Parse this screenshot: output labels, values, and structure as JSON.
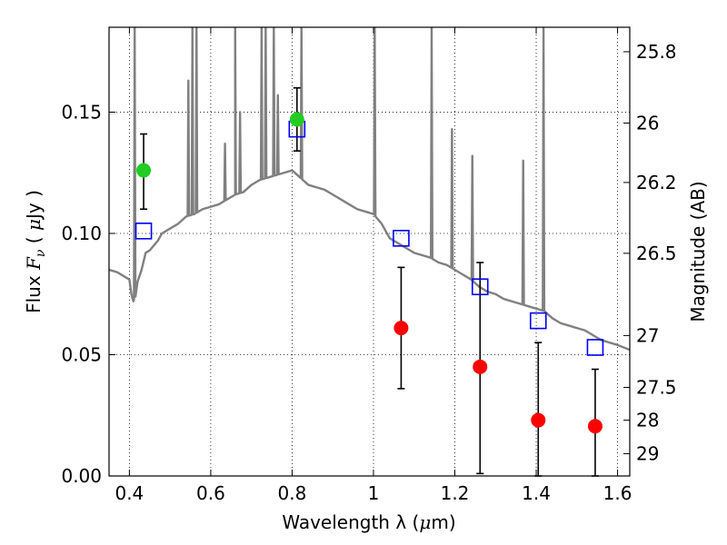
{
  "chart_data": {
    "type": "scatter",
    "xlabel": "Wavelength  λ (μm)",
    "ylabel": "Flux  Fν  ( μJy )",
    "ylabel_right": "Magnitude (AB)",
    "xlim": [
      0.35,
      1.63
    ],
    "ylim": [
      0.0,
      0.185
    ],
    "grid": true,
    "x_ticks": [
      0.4,
      0.6,
      0.8,
      1.0,
      1.2,
      1.4,
      1.6
    ],
    "x_tick_labels": [
      "0.4",
      "0.6",
      "0.8",
      "1",
      "1.2",
      "1.4",
      "1.6"
    ],
    "y_ticks": [
      0.0,
      0.05,
      0.1,
      0.15
    ],
    "y_tick_labels": [
      "0.00",
      "0.05",
      "0.10",
      "0.15"
    ],
    "right_ticks": [
      {
        "label": "25.8",
        "flux": 0.1749
      },
      {
        "label": "26",
        "flux": 0.1455
      },
      {
        "label": "26.2",
        "flux": 0.121
      },
      {
        "label": "26.5",
        "flux": 0.0918
      },
      {
        "label": "27",
        "flux": 0.0579
      },
      {
        "label": "27.5",
        "flux": 0.0365
      },
      {
        "label": "28",
        "flux": 0.023
      },
      {
        "label": "29",
        "flux": 0.0092
      }
    ],
    "spectrum": {
      "color": "#808080",
      "x": [
        0.35,
        0.37,
        0.39,
        0.4,
        0.405,
        0.408,
        0.41,
        0.415,
        0.42,
        0.43,
        0.44,
        0.45,
        0.46,
        0.47,
        0.48,
        0.49,
        0.5,
        0.52,
        0.54,
        0.56,
        0.58,
        0.6,
        0.62,
        0.64,
        0.66,
        0.68,
        0.7,
        0.72,
        0.74,
        0.76,
        0.78,
        0.8,
        0.82,
        0.84,
        0.86,
        0.88,
        0.9,
        0.92,
        0.94,
        0.96,
        0.98,
        1.0,
        1.02,
        1.04,
        1.06,
        1.08,
        1.1,
        1.12,
        1.14,
        1.16,
        1.18,
        1.2,
        1.22,
        1.24,
        1.26,
        1.28,
        1.3,
        1.32,
        1.34,
        1.36,
        1.38,
        1.4,
        1.42,
        1.44,
        1.46,
        1.48,
        1.5,
        1.52,
        1.54,
        1.56,
        1.58,
        1.6,
        1.63
      ],
      "y": [
        0.085,
        0.084,
        0.082,
        0.081,
        0.075,
        0.073,
        0.072,
        0.074,
        0.08,
        0.085,
        0.092,
        0.093,
        0.095,
        0.097,
        0.1,
        0.101,
        0.102,
        0.104,
        0.107,
        0.108,
        0.11,
        0.111,
        0.112,
        0.114,
        0.116,
        0.117,
        0.12,
        0.122,
        0.123,
        0.124,
        0.125,
        0.126,
        0.123,
        0.12,
        0.119,
        0.118,
        0.116,
        0.114,
        0.112,
        0.11,
        0.109,
        0.108,
        0.104,
        0.098,
        0.096,
        0.094,
        0.092,
        0.091,
        0.09,
        0.088,
        0.087,
        0.085,
        0.083,
        0.081,
        0.078,
        0.076,
        0.075,
        0.073,
        0.072,
        0.071,
        0.07,
        0.069,
        0.068,
        0.065,
        0.063,
        0.062,
        0.061,
        0.06,
        0.058,
        0.056,
        0.055,
        0.054,
        0.052
      ]
    },
    "emission_lines": [
      {
        "x": 0.413,
        "peak": 0.185
      },
      {
        "x": 0.545,
        "peak": 0.163
      },
      {
        "x": 0.555,
        "peak": 0.185
      },
      {
        "x": 0.565,
        "peak": 0.185
      },
      {
        "x": 0.635,
        "peak": 0.137
      },
      {
        "x": 0.66,
        "peak": 0.185
      },
      {
        "x": 0.672,
        "peak": 0.15
      },
      {
        "x": 0.725,
        "peak": 0.185
      },
      {
        "x": 0.735,
        "peak": 0.185
      },
      {
        "x": 0.755,
        "peak": 0.185
      },
      {
        "x": 0.765,
        "peak": 0.157
      },
      {
        "x": 0.823,
        "peak": 0.185
      },
      {
        "x": 1.003,
        "peak": 0.185
      },
      {
        "x": 1.143,
        "peak": 0.185
      },
      {
        "x": 1.193,
        "peak": 0.143
      },
      {
        "x": 1.243,
        "peak": 0.132
      },
      {
        "x": 1.368,
        "peak": 0.13
      },
      {
        "x": 1.418,
        "peak": 0.185
      }
    ],
    "open_squares": {
      "color": "#0000ff",
      "x": [
        0.435,
        0.812,
        1.068,
        1.262,
        1.405,
        1.545
      ],
      "y": [
        0.101,
        0.143,
        0.098,
        0.078,
        0.064,
        0.053
      ]
    },
    "green_points": {
      "color": "#22cc22",
      "x": [
        0.435,
        0.812
      ],
      "y": [
        0.126,
        0.147
      ],
      "err_low": [
        0.11,
        0.134
      ],
      "err_high": [
        0.141,
        0.16
      ]
    },
    "red_points": {
      "color": "#ff0000",
      "x": [
        1.068,
        1.262,
        1.405,
        1.545
      ],
      "y": [
        0.061,
        0.045,
        0.023,
        0.0205
      ],
      "err_low": [
        0.036,
        0.001,
        0.0,
        0.0
      ],
      "err_high": [
        0.086,
        0.088,
        0.055,
        0.044
      ]
    }
  }
}
